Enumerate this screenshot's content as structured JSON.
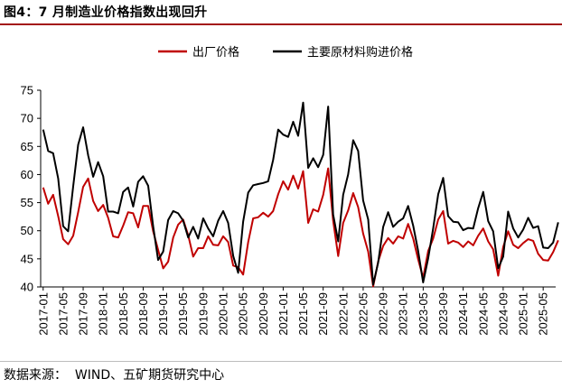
{
  "figure_title": "图4：7 月制造业价格指数出现回升",
  "source": {
    "label": "数据来源：",
    "value": "WIND、五矿期货研究中心"
  },
  "chart_data": {
    "type": "line",
    "ylim": [
      40,
      75
    ],
    "yticks": [
      40,
      45,
      50,
      55,
      60,
      65,
      70,
      75
    ],
    "x_tick_labels": [
      "2017-01",
      "2017-05",
      "2017-09",
      "2018-01",
      "2018-05",
      "2018-09",
      "2019-01",
      "2019-05",
      "2019-09",
      "2020-01",
      "2020-05",
      "2020-09",
      "2021-01",
      "2021-05",
      "2021-09",
      "2022-01",
      "2022-05",
      "2022-09",
      "2023-01",
      "2023-05",
      "2023-09",
      "2024-01",
      "2024-05",
      "2024-09",
      "2025-01",
      "2025-05"
    ],
    "x_start": "2017-01",
    "x_end": "2025-07",
    "grid": false,
    "legend_position": "top",
    "series": [
      {
        "name": "出厂价格",
        "color": "#c00000",
        "values": [
          57.7,
          54.8,
          56.4,
          52.6,
          48.5,
          47.6,
          49.1,
          53.3,
          57.8,
          59.3,
          55.3,
          53.5,
          54.6,
          52.3,
          49.0,
          48.8,
          50.9,
          53.3,
          53.1,
          50.6,
          54.4,
          54.4,
          49.9,
          46.6,
          43.3,
          44.5,
          48.8,
          51.1,
          52.0,
          49.2,
          45.4,
          46.9,
          46.9,
          49.0,
          47.5,
          47.4,
          49.0,
          48.0,
          43.8,
          43.5,
          42.2,
          48.0,
          52.2,
          52.4,
          53.2,
          52.5,
          53.5,
          56.5,
          58.8,
          57.3,
          59.8,
          57.5,
          60.6,
          51.4,
          53.8,
          53.4,
          56.4,
          61.1,
          51.8,
          45.5,
          51.4,
          53.6,
          56.7,
          54.2,
          49.5,
          46.3,
          40.1,
          44.5,
          47.3,
          48.7,
          47.7,
          49.0,
          48.6,
          51.2,
          48.6,
          44.9,
          41.6,
          46.4,
          48.6,
          52.0,
          53.5,
          47.7,
          48.2,
          47.9,
          47.1,
          48.1,
          47.4,
          49.1,
          50.4,
          48.1,
          46.7,
          42.0,
          47.1,
          49.9,
          47.5,
          46.9,
          47.8,
          48.5,
          48.2,
          45.9,
          44.8,
          44.7,
          46.2,
          48.3
        ]
      },
      {
        "name": "主要原材料购进价格",
        "color": "#000000",
        "values": [
          68.0,
          64.2,
          63.8,
          59.3,
          50.8,
          49.9,
          57.9,
          65.3,
          68.4,
          63.4,
          59.6,
          62.2,
          59.7,
          53.4,
          53.4,
          53.1,
          56.9,
          57.7,
          54.3,
          58.7,
          59.7,
          58.0,
          50.8,
          44.8,
          46.3,
          51.9,
          53.5,
          53.1,
          51.8,
          48.8,
          50.7,
          48.6,
          52.2,
          50.4,
          49.0,
          51.8,
          53.5,
          51.4,
          45.5,
          42.5,
          51.6,
          56.8,
          58.1,
          58.3,
          58.5,
          58.8,
          62.6,
          68.0,
          67.1,
          66.7,
          69.4,
          66.9,
          72.8,
          61.2,
          62.9,
          61.3,
          63.5,
          72.1,
          52.9,
          48.1,
          56.4,
          60.0,
          66.1,
          64.2,
          55.4,
          52.0,
          40.4,
          44.3,
          50.7,
          53.3,
          50.7,
          51.6,
          52.2,
          54.4,
          50.9,
          46.4,
          40.8,
          45.1,
          50.4,
          56.5,
          59.4,
          52.6,
          51.6,
          51.5,
          50.1,
          50.5,
          50.4,
          54.0,
          56.9,
          51.7,
          49.9,
          43.3,
          45.4,
          53.4,
          50.4,
          48.8,
          50.2,
          52.3,
          50.5,
          50.8,
          47.0,
          46.9,
          47.9,
          51.5
        ]
      }
    ]
  }
}
